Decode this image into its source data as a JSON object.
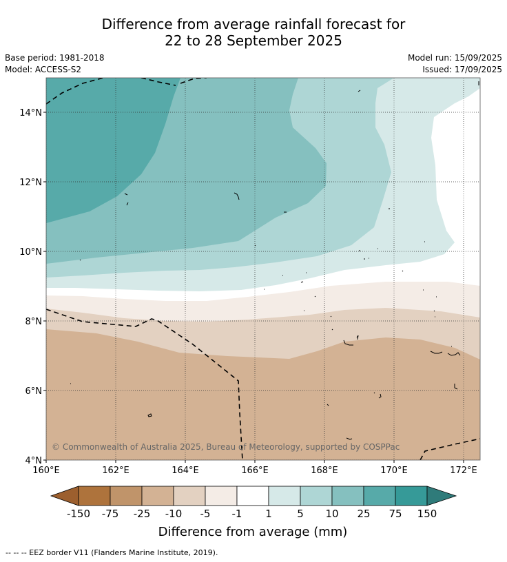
{
  "title": {
    "line1": "Difference from average rainfall forecast for",
    "line2": "22 to 28 September 2025"
  },
  "meta": {
    "base_period": "Base period: 1981-2018",
    "model": "Model: ACCESS-S2",
    "model_run": "Model run: 15/09/2025",
    "issued": "Issued: 17/09/2025"
  },
  "map": {
    "lat_labels": [
      "14°N",
      "12°N",
      "10°N",
      "8°N",
      "6°N",
      "4°N"
    ],
    "lon_labels": [
      "160°E",
      "162°E",
      "164°E",
      "166°E",
      "168°E",
      "170°E",
      "172°E"
    ],
    "copyright": "© Commonwealth of Australia 2025, Bureau of Meteorology, supported by COSPPac"
  },
  "legend": {
    "title": "Difference from average (mm)",
    "tick_labels": [
      "-150",
      "-75",
      "-25",
      "-10",
      "-5",
      "-1",
      "1",
      "5",
      "10",
      "25",
      "75",
      "150"
    ],
    "colors": [
      "#9c5f2e",
      "#ae733c",
      "#c0946a",
      "#d3b294",
      "#e3d1c1",
      "#f4ece6",
      "#ffffff",
      "#d6e9e8",
      "#aed6d5",
      "#85c0bf",
      "#57aaa9",
      "#369a98",
      "#2f7b7a"
    ]
  },
  "footnote": "--  --  -- EEZ border V11 (Flanders Marine Institute, 2019)."
}
